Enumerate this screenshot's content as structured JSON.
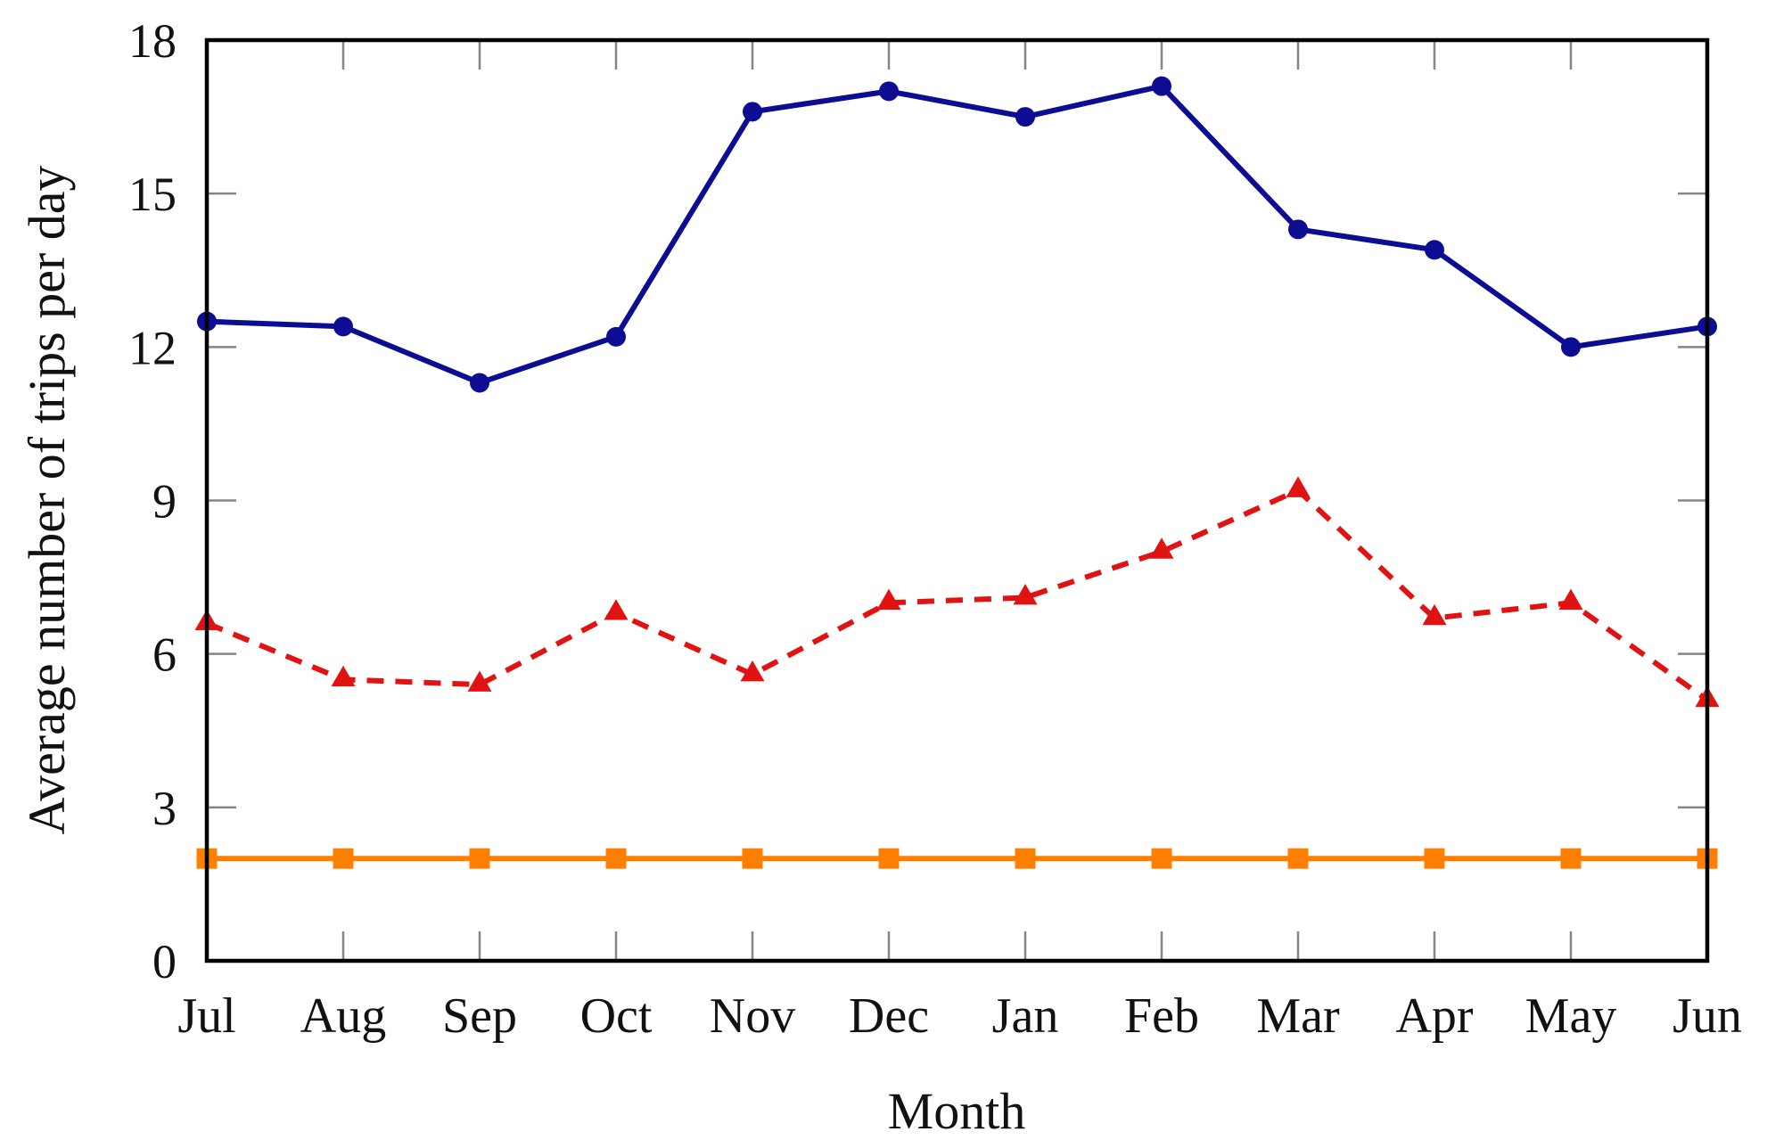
{
  "chart_data": {
    "type": "line",
    "title": "",
    "xlabel": "Month",
    "ylabel": "Average number of trips per day",
    "categories": [
      "Jul",
      "Aug",
      "Sep",
      "Oct",
      "Nov",
      "Dec",
      "Jan",
      "Feb",
      "Mar",
      "Apr",
      "May",
      "Jun"
    ],
    "y_ticks": [
      0,
      3,
      6,
      9,
      12,
      15,
      18
    ],
    "ylim": [
      0,
      18
    ],
    "grid": false,
    "legend_position": "none",
    "axis_color": "#000000",
    "tick_color": "#858585",
    "series": [
      {
        "name": "blue-solid-circle-series",
        "color": "#0d0d94",
        "line_style": "solid",
        "marker": "circle",
        "values": [
          12.5,
          12.4,
          11.3,
          12.2,
          16.6,
          17.0,
          16.5,
          17.1,
          14.3,
          13.9,
          12.0,
          12.4
        ]
      },
      {
        "name": "red-dashed-triangle-series",
        "color": "#e11212",
        "line_style": "dashed",
        "marker": "triangle",
        "values": [
          6.6,
          5.5,
          5.4,
          6.8,
          5.6,
          7.0,
          7.1,
          8.0,
          9.2,
          6.7,
          7.0,
          5.1
        ]
      },
      {
        "name": "orange-solid-square-series",
        "color": "#ff8000",
        "line_style": "solid",
        "marker": "square",
        "values": [
          2.0,
          2.0,
          2.0,
          2.0,
          2.0,
          2.0,
          2.0,
          2.0,
          2.0,
          2.0,
          2.0,
          2.0
        ]
      }
    ]
  }
}
